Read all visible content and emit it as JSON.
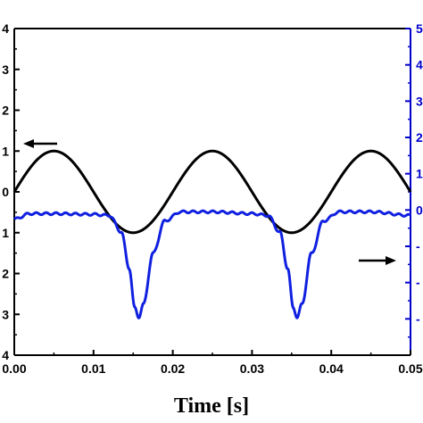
{
  "chart_data": {
    "type": "line",
    "title": "",
    "xlabel": "Time [s]",
    "ylabel_left": "",
    "ylabel_right": "",
    "xlim": [
      0.0,
      0.05
    ],
    "ylim_left": [
      -4,
      4
    ],
    "ylim_right": [
      -4,
      5
    ],
    "x_ticks": [
      "0.00",
      "0.01",
      "0.02",
      "0.03",
      "0.04",
      "0.05"
    ],
    "y_left_ticks_visible": [
      "4",
      "3",
      "2",
      "1",
      "0",
      "1",
      "2",
      "3",
      "4"
    ],
    "y_right_ticks_visible": [
      "5",
      "4",
      "3",
      "2",
      "1",
      "0",
      "-",
      "-",
      "-"
    ],
    "grid": false,
    "legend": "none",
    "colors": {
      "left_axis": "#000000",
      "right_axis": "#0000cc",
      "series_black": "#000000",
      "series_blue": "#1020e0"
    },
    "series": [
      {
        "axis": "left",
        "color": "#000000",
        "description_points": [
          {
            "x": 0.0,
            "y": 0.0
          },
          {
            "x": 0.0025,
            "y": 0.71
          },
          {
            "x": 0.005,
            "y": 1.0
          },
          {
            "x": 0.0075,
            "y": 0.71
          },
          {
            "x": 0.01,
            "y": 0.0
          },
          {
            "x": 0.0125,
            "y": -0.71
          },
          {
            "x": 0.015,
            "y": -1.0
          },
          {
            "x": 0.0175,
            "y": -0.71
          },
          {
            "x": 0.02,
            "y": 0.0
          },
          {
            "x": 0.0225,
            "y": 0.71
          },
          {
            "x": 0.025,
            "y": 1.0
          },
          {
            "x": 0.0275,
            "y": 0.71
          },
          {
            "x": 0.03,
            "y": 0.0
          },
          {
            "x": 0.0325,
            "y": -0.71
          },
          {
            "x": 0.035,
            "y": -1.0
          },
          {
            "x": 0.0375,
            "y": -0.71
          },
          {
            "x": 0.04,
            "y": 0.0
          },
          {
            "x": 0.0425,
            "y": 0.71
          },
          {
            "x": 0.045,
            "y": 1.0
          },
          {
            "x": 0.0475,
            "y": 0.71
          },
          {
            "x": 0.05,
            "y": 0.0
          }
        ]
      },
      {
        "axis": "right",
        "color": "#1020e0",
        "description_points": [
          {
            "x": 0.0,
            "y": -0.25
          },
          {
            "x": 0.002,
            "y": -0.1
          },
          {
            "x": 0.005,
            "y": -0.1
          },
          {
            "x": 0.01,
            "y": -0.12
          },
          {
            "x": 0.012,
            "y": -0.15
          },
          {
            "x": 0.0135,
            "y": -0.6
          },
          {
            "x": 0.0145,
            "y": -1.6
          },
          {
            "x": 0.0152,
            "y": -2.7
          },
          {
            "x": 0.0157,
            "y": -2.95
          },
          {
            "x": 0.0163,
            "y": -2.6
          },
          {
            "x": 0.0175,
            "y": -1.2
          },
          {
            "x": 0.019,
            "y": -0.3
          },
          {
            "x": 0.021,
            "y": -0.05
          },
          {
            "x": 0.025,
            "y": -0.05
          },
          {
            "x": 0.03,
            "y": -0.1
          },
          {
            "x": 0.032,
            "y": -0.15
          },
          {
            "x": 0.0335,
            "y": -0.6
          },
          {
            "x": 0.0345,
            "y": -1.6
          },
          {
            "x": 0.0352,
            "y": -2.7
          },
          {
            "x": 0.0357,
            "y": -2.95
          },
          {
            "x": 0.0363,
            "y": -2.6
          },
          {
            "x": 0.0375,
            "y": -1.2
          },
          {
            "x": 0.039,
            "y": -0.3
          },
          {
            "x": 0.041,
            "y": -0.05
          },
          {
            "x": 0.045,
            "y": -0.05
          },
          {
            "x": 0.05,
            "y": -0.15
          }
        ]
      }
    ],
    "annotations": [
      {
        "type": "arrow",
        "direction": "left",
        "points_to_axis": "left"
      },
      {
        "type": "arrow",
        "direction": "right",
        "points_to_axis": "right"
      }
    ]
  }
}
